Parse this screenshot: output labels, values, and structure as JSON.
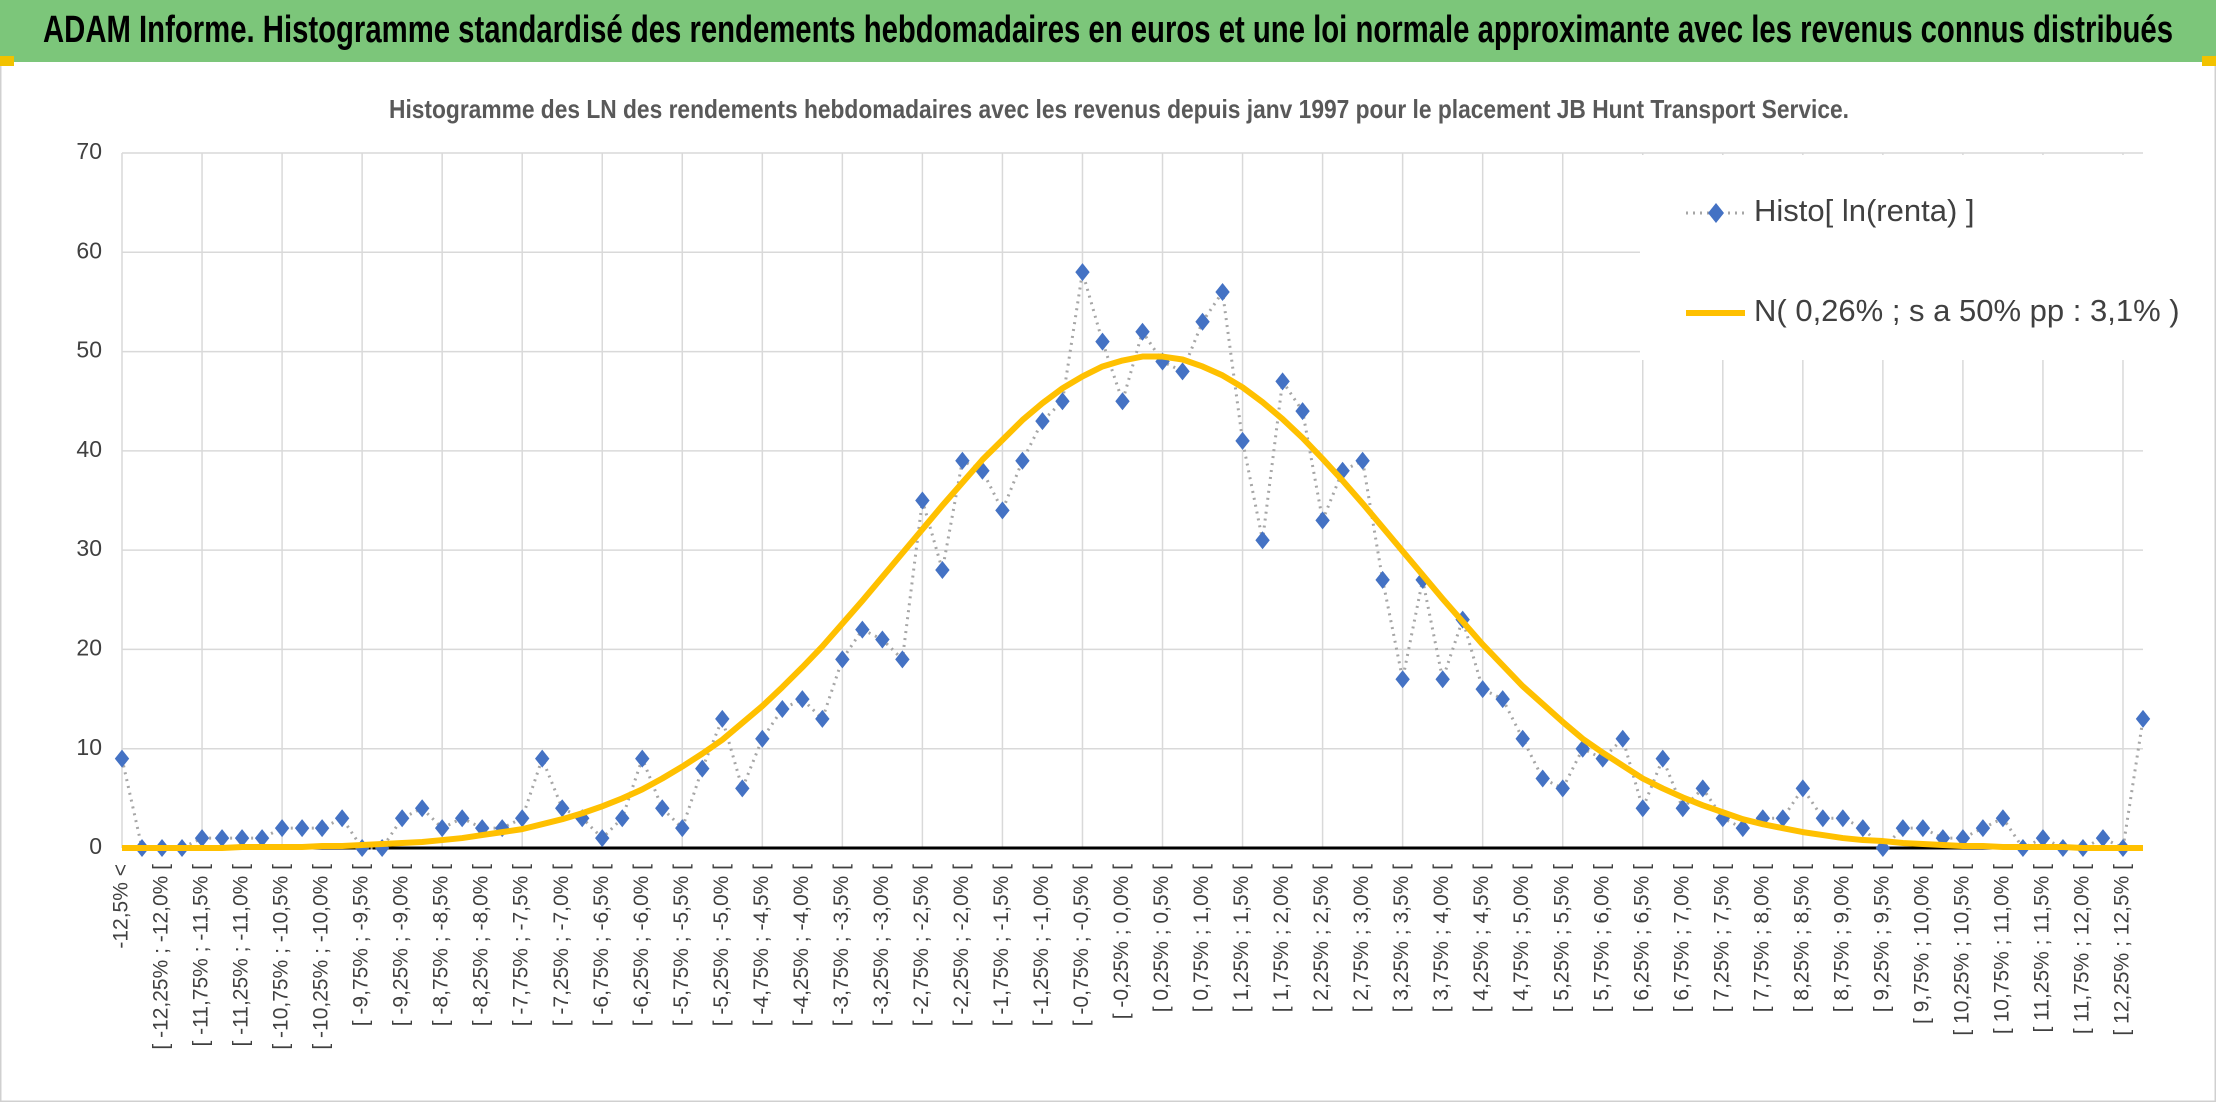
{
  "header": {
    "title": "ADAM Informe. Histogramme standardisé des rendements hebdomadaires en euros et une loi normale approximante avec les revenus connus distribués"
  },
  "chart_data": {
    "type": "line",
    "title": "Histogramme des LN des rendements hebdomadaires avec les revenus depuis janv 1997 pour le placement JB Hunt Transport Service.",
    "categories": [
      "-12,5% <",
      null,
      "[ -12,25% ; -12,0% [",
      null,
      "[ -11,75% ; -11,5% [",
      null,
      "[ -11,25% ; -11,0% [",
      null,
      "[ -10,75% ; -10,5% [",
      null,
      "[ -10,25% ; -10,0% [",
      null,
      "[ -9,75% ; -9,5% [",
      null,
      "[ -9,25% ; -9,0% [",
      null,
      "[ -8,75% ; -8,5% [",
      null,
      "[ -8,25% ; -8,0% [",
      null,
      "[ -7,75% ; -7,5% [",
      null,
      "[ -7,25% ; -7,0% [",
      null,
      "[ -6,75% ; -6,5% [",
      null,
      "[ -6,25% ; -6,0% [",
      null,
      "[ -5,75% ; -5,5% [",
      null,
      "[ -5,25% ; -5,0% [",
      null,
      "[ -4,75% ; -4,5% [",
      null,
      "[ -4,25% ; -4,0% [",
      null,
      "[ -3,75% ; -3,5% [",
      null,
      "[ -3,25% ; -3,0% [",
      null,
      "[ -2,75% ; -2,5% [",
      null,
      "[ -2,25% ; -2,0% [",
      null,
      "[ -1,75% ; -1,5% [",
      null,
      "[ -1,25% ; -1,0% [",
      null,
      "[ -0,75% ; -0,5% [",
      null,
      "[ -0,25% ; 0,0% [",
      null,
      "[ 0,25% ; 0,5% [",
      null,
      "[ 0,75% ; 1,0% [",
      null,
      "[ 1,25% ; 1,5% [",
      null,
      "[ 1,75% ; 2,0% [",
      null,
      "[ 2,25% ; 2,5% [",
      null,
      "[ 2,75% ; 3,0% [",
      null,
      "[ 3,25% ; 3,5% [",
      null,
      "[ 3,75% ; 4,0% [",
      null,
      "[ 4,25% ; 4,5% [",
      null,
      "[ 4,75% ; 5,0% [",
      null,
      "[ 5,25% ; 5,5% [",
      null,
      "[ 5,75% ; 6,0% [",
      null,
      "[ 6,25% ; 6,5% [",
      null,
      "[ 6,75% ; 7,0% [",
      null,
      "[ 7,25% ; 7,5% [",
      null,
      "[ 7,75% ; 8,0% [",
      null,
      "[ 8,25% ; 8,5% [",
      null,
      "[ 8,75% ; 9,0% [",
      null,
      "[ 9,25% ; 9,5% [",
      null,
      "[ 9,75% ; 10,0% [",
      null,
      "[ 10,25% ; 10,5% [",
      null,
      "[ 10,75% ; 11,0% [",
      null,
      "[ 11,25% ; 11,5% [",
      null,
      "[ 11,75% ; 12,0% [",
      null,
      "[ 12,25% ; 12,5% [",
      null
    ],
    "series": [
      {
        "name": "Histo[ ln(renta) ]",
        "color": "#4472c4",
        "values": [
          9,
          0,
          0,
          0,
          1,
          1,
          1,
          1,
          2,
          2,
          2,
          3,
          0,
          0,
          3,
          4,
          2,
          3,
          2,
          2,
          3,
          9,
          4,
          3,
          1,
          3,
          9,
          4,
          2,
          8,
          13,
          6,
          11,
          14,
          15,
          13,
          19,
          22,
          21,
          19,
          35,
          28,
          39,
          38,
          34,
          39,
          43,
          45,
          58,
          51,
          45,
          52,
          49,
          48,
          53,
          56,
          41,
          31,
          47,
          44,
          33,
          38,
          39,
          27,
          17,
          27,
          17,
          23,
          16,
          15,
          11,
          7,
          6,
          10,
          9,
          11,
          4,
          9,
          4,
          6,
          3,
          2,
          3,
          3,
          6,
          3,
          3,
          2,
          0,
          2,
          2,
          1,
          1,
          2,
          3,
          0,
          1,
          0,
          0,
          1,
          0,
          13
        ]
      },
      {
        "name": "N( 0,26% ; s a 50% pp : 3,1% )",
        "color": "#ffc000",
        "values": [
          0,
          0,
          0,
          0,
          0,
          0,
          0.1,
          0.1,
          0.1,
          0.1,
          0.2,
          0.2,
          0.3,
          0.4,
          0.5,
          0.6,
          0.8,
          1.0,
          1.3,
          1.6,
          1.9,
          2.4,
          2.9,
          3.5,
          4.2,
          5.0,
          5.9,
          7.0,
          8.2,
          9.5,
          10.9,
          12.6,
          14.3,
          16.2,
          18.2,
          20.3,
          22.6,
          24.9,
          27.3,
          29.7,
          32.1,
          34.5,
          36.8,
          39.1,
          41.1,
          43.1,
          44.8,
          46.3,
          47.5,
          48.5,
          49.1,
          49.5,
          49.5,
          49.2,
          48.5,
          47.6,
          46.4,
          44.9,
          43.2,
          41.3,
          39.2,
          37.0,
          34.7,
          32.3,
          29.9,
          27.5,
          25.1,
          22.8,
          20.5,
          18.4,
          16.3,
          14.5,
          12.7,
          11.0,
          9.6,
          8.3,
          7.0,
          6.0,
          5.1,
          4.3,
          3.6,
          2.9,
          2.4,
          2.0,
          1.6,
          1.3,
          1.0,
          0.8,
          0.7,
          0.5,
          0.4,
          0.3,
          0.2,
          0.2,
          0.1,
          0.1,
          0.1,
          0.1,
          0,
          0,
          0,
          0
        ]
      }
    ],
    "ylim": [
      0,
      70
    ],
    "yticks": [
      0,
      10,
      20,
      30,
      40,
      50,
      60,
      70
    ],
    "grid": true
  }
}
